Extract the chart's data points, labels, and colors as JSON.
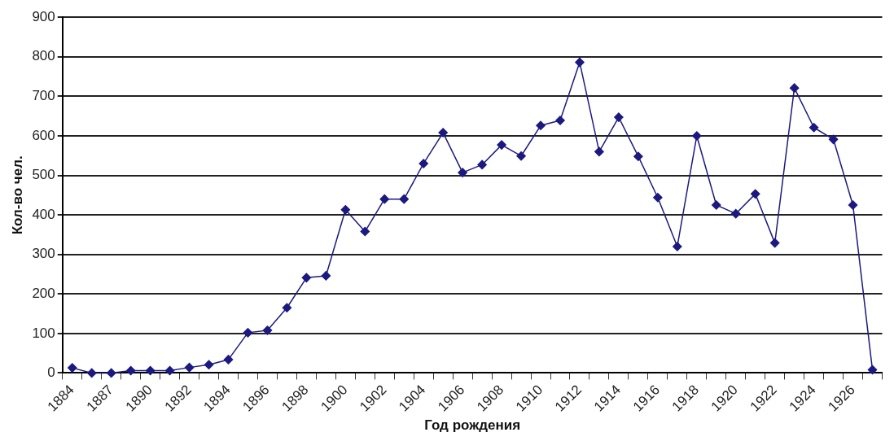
{
  "chart_data": {
    "type": "line",
    "xlabel": "Год рождения",
    "ylabel": "Кол-во чел.",
    "categories": [
      "1884",
      null,
      "1887",
      null,
      "1890",
      null,
      "1892",
      null,
      "1894",
      null,
      "1896",
      null,
      "1898",
      null,
      "1900",
      null,
      "1902",
      null,
      "1904",
      null,
      "1906",
      null,
      "1908",
      null,
      "1910",
      null,
      "1912",
      null,
      "1914",
      null,
      "1916",
      null,
      "1918",
      null,
      "1920",
      null,
      "1922",
      null,
      "1924",
      null,
      "1926",
      null
    ],
    "series": [
      {
        "color": "#1c1a80",
        "values": [
          13,
          0,
          0,
          6,
          6,
          6,
          14,
          21,
          34,
          102,
          108,
          165,
          241,
          246,
          413,
          358,
          440,
          440,
          530,
          608,
          507,
          527,
          577,
          549,
          626,
          639,
          786,
          560,
          647,
          548,
          444,
          320,
          600,
          425,
          403,
          453,
          329,
          721,
          621,
          591,
          425,
          8
        ]
      }
    ],
    "ylim": [
      0,
      900
    ],
    "yticks": [
      0,
      100,
      200,
      300,
      400,
      500,
      600,
      700,
      800,
      900
    ],
    "grid": "y",
    "marker": "diamond",
    "legend": false
  }
}
